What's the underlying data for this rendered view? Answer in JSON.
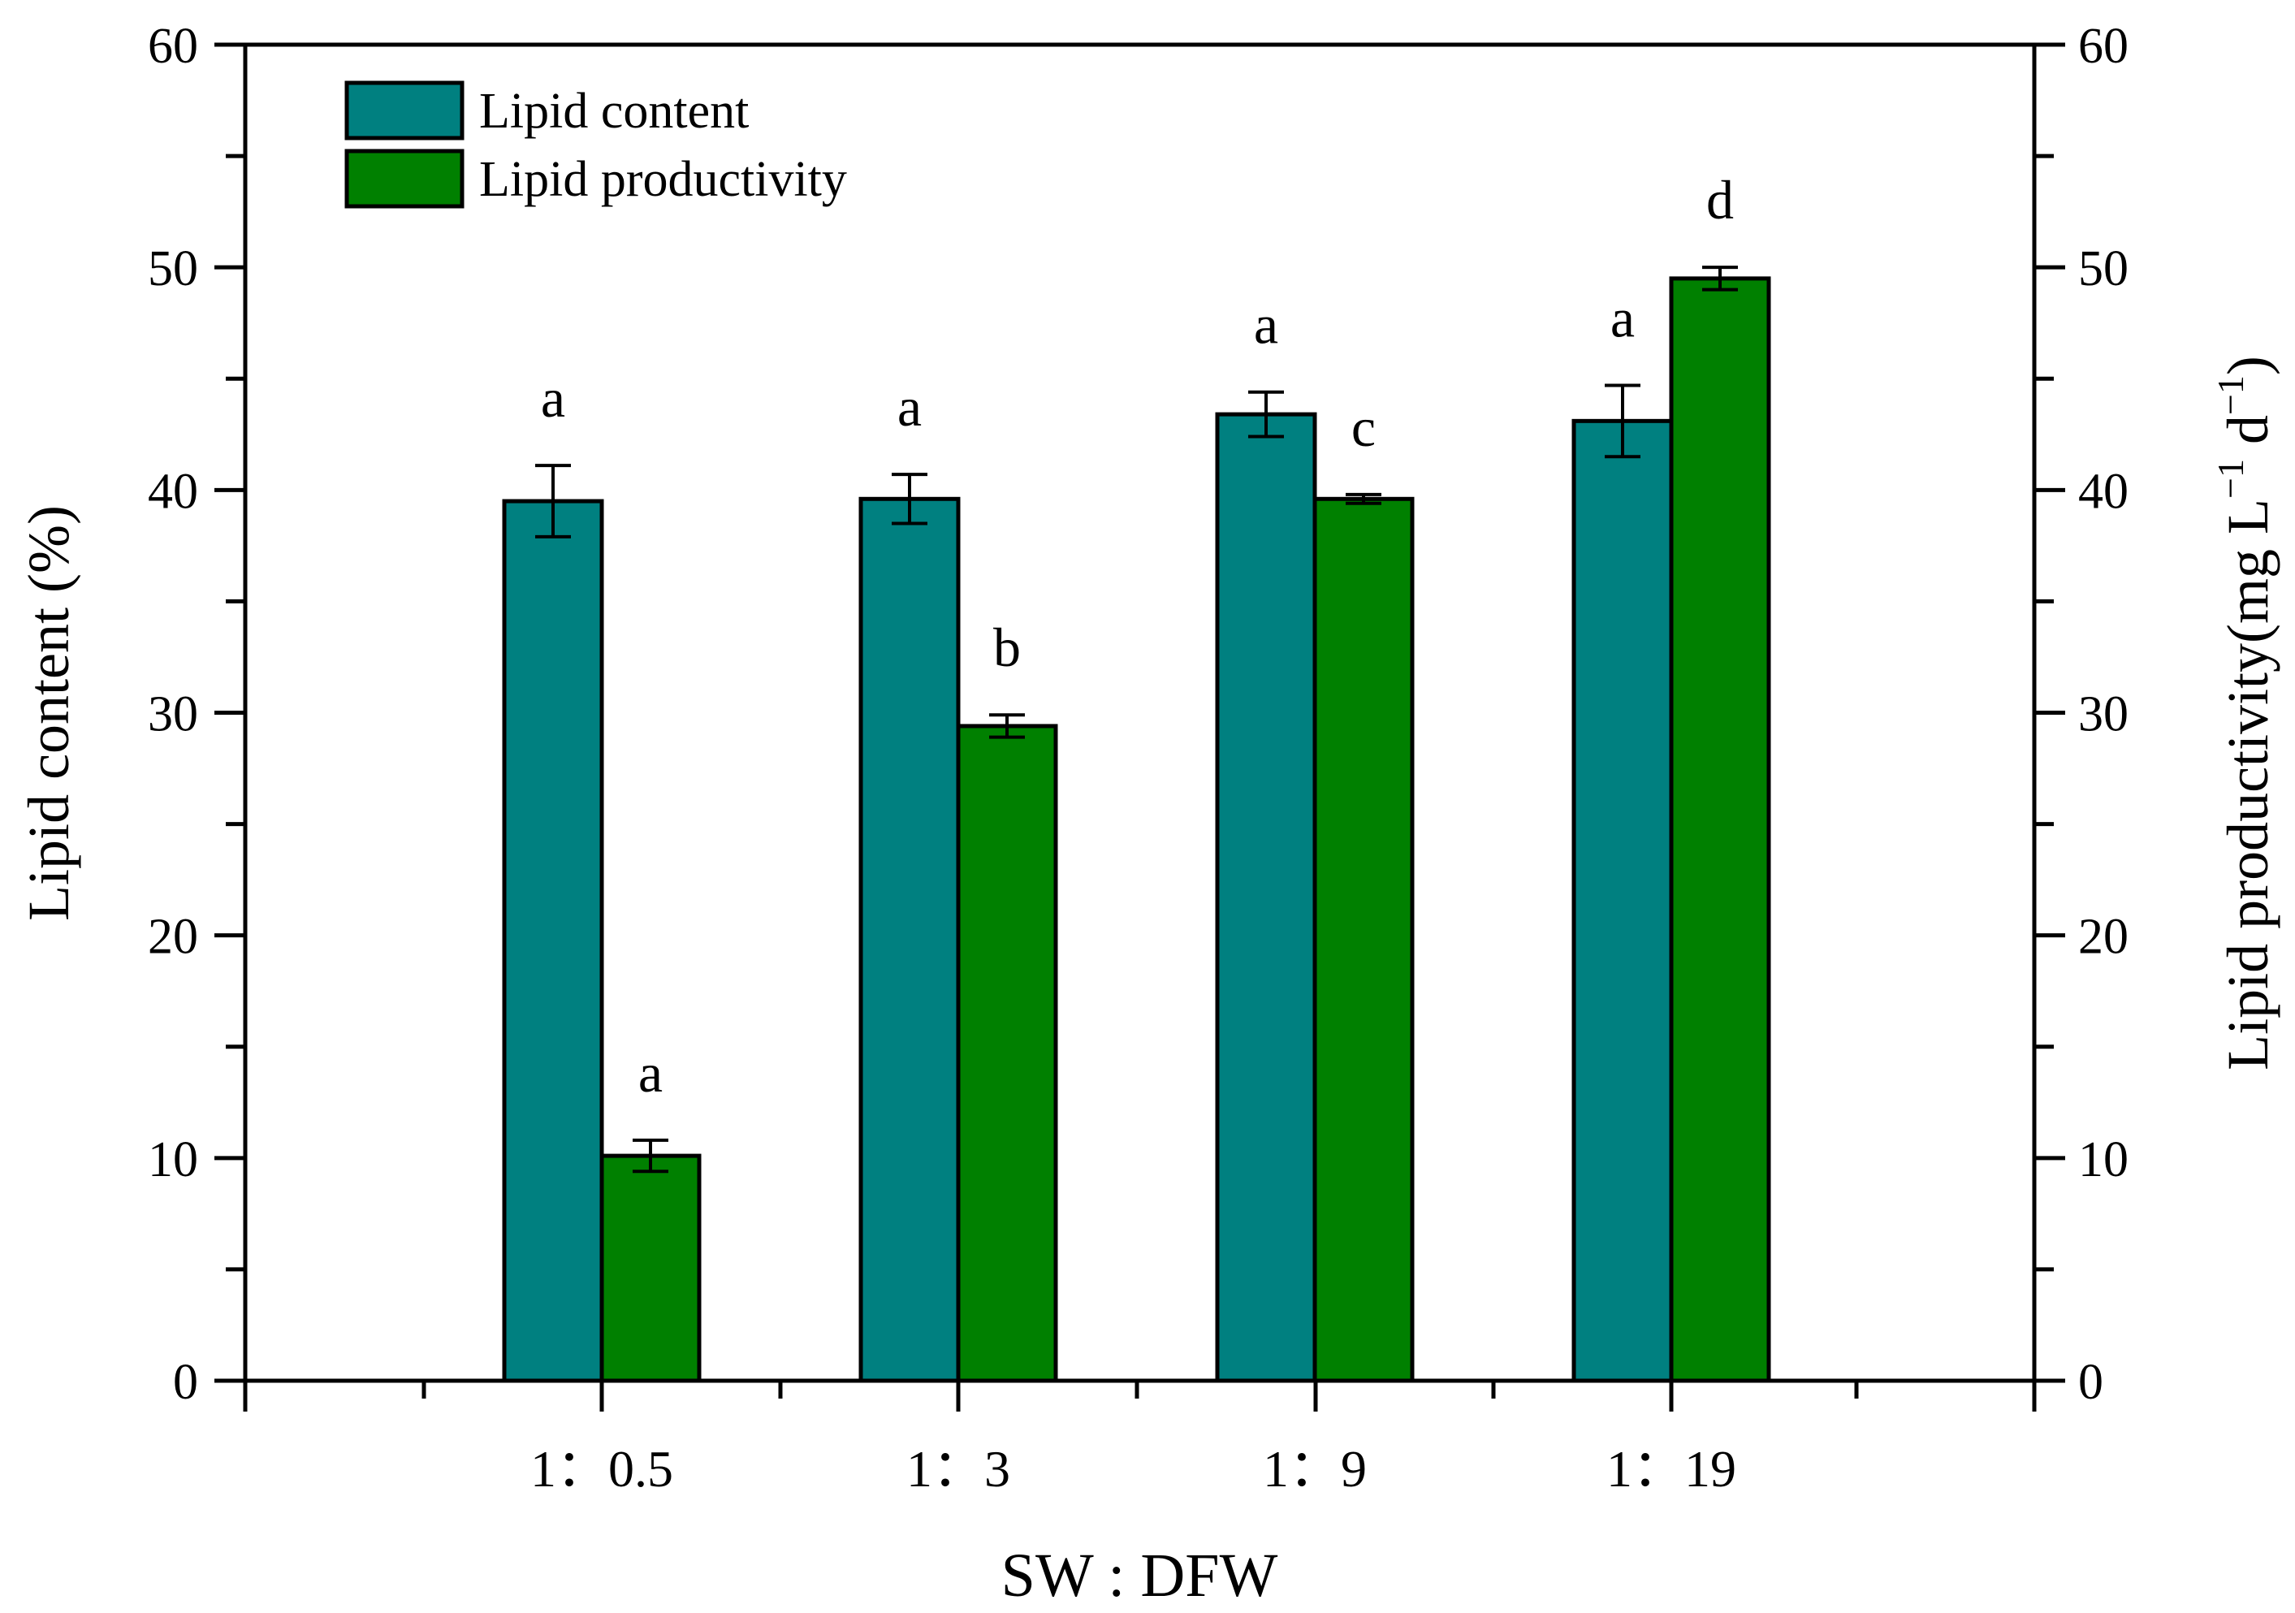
{
  "chart_data": {
    "type": "bar",
    "xlabel": "SW : DFW",
    "ylabel": "Lipid content (%)",
    "y2label": {
      "text": "Lipid productivity(mg L",
      "sup1": "−1",
      "mid": " d",
      "sup2": "−1",
      "close": ")"
    },
    "categories": [
      "1：0.5",
      "1：3",
      "1：9",
      "1：19"
    ],
    "ylim": [
      0,
      60
    ],
    "y2lim": [
      0,
      60
    ],
    "yticks": [
      "0",
      "10",
      "20",
      "30",
      "40",
      "50",
      "60"
    ],
    "y2ticks": [
      "0",
      "10",
      "20",
      "30",
      "40",
      "50",
      "60"
    ],
    "legend_position": "top-left",
    "series": [
      {
        "name": "Lipid content",
        "axis": "left",
        "color": "#008080",
        "values": [
          39.5,
          39.6,
          43.4,
          43.1
        ],
        "errors": [
          1.6,
          1.1,
          1.0,
          1.6
        ],
        "letters": [
          "a",
          "a",
          "a",
          "a"
        ]
      },
      {
        "name": "Lipid productivity",
        "axis": "right",
        "color": "#008000",
        "values": [
          10.1,
          29.4,
          39.6,
          49.5
        ],
        "errors": [
          0.7,
          0.5,
          0.2,
          0.5
        ],
        "letters": [
          "a",
          "b",
          "c",
          "d"
        ]
      }
    ]
  }
}
